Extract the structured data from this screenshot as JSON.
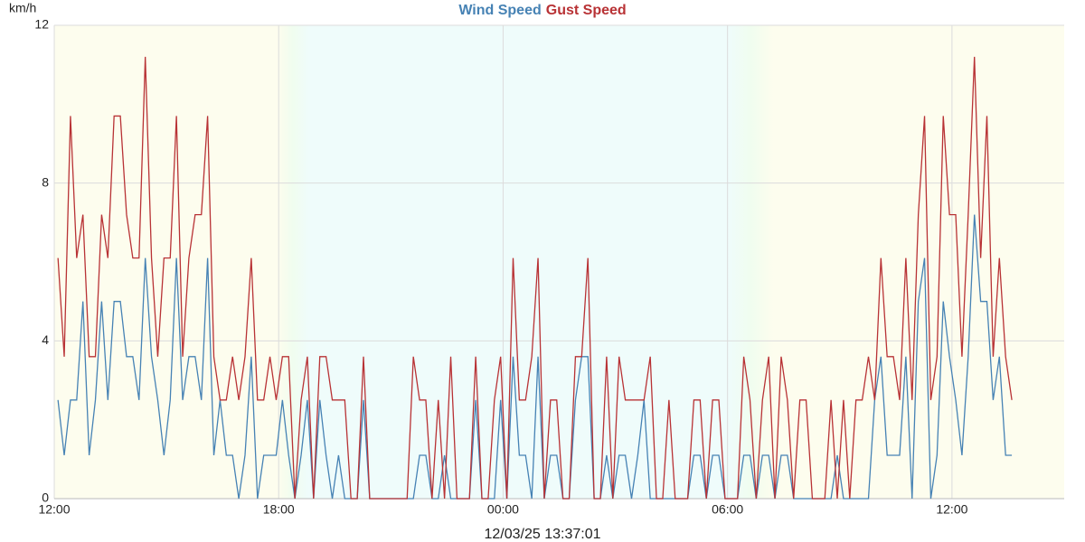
{
  "chart_data": {
    "type": "line",
    "title": "Wind Speed Gust Speed",
    "y_label": "km/h",
    "x_label": "12/03/25 13:37:01",
    "x": [
      6,
      16,
      26,
      36,
      46,
      56,
      66,
      76,
      86,
      96,
      106,
      116,
      126,
      136,
      146,
      156,
      166,
      176,
      186,
      196,
      206,
      216,
      226,
      236,
      246,
      256,
      266,
      276,
      286,
      296,
      306,
      316,
      326,
      336,
      346,
      356,
      366,
      376,
      386,
      396,
      406,
      416,
      426,
      436,
      446,
      456,
      466,
      476,
      486,
      496,
      506,
      516,
      526,
      536,
      546,
      556,
      566,
      576,
      586,
      596,
      606,
      616,
      626,
      636,
      646,
      656,
      666,
      676,
      686,
      696,
      706,
      716,
      726,
      736,
      746,
      756,
      766,
      776,
      786,
      796,
      806,
      816,
      826,
      836,
      846,
      856,
      866,
      876,
      886,
      896,
      906,
      916,
      926,
      936,
      946,
      956,
      966,
      976,
      986,
      996,
      1006,
      1016,
      1026,
      1036,
      1046,
      1056,
      1066,
      1076,
      1086,
      1096,
      1106,
      1116,
      1126,
      1136,
      1146,
      1156,
      1166,
      1176,
      1186,
      1196,
      1206,
      1216,
      1226,
      1236,
      1246,
      1256,
      1266,
      1276,
      1286,
      1296,
      1306,
      1316,
      1326,
      1336,
      1346,
      1356,
      1366,
      1376,
      1386,
      1396,
      1406,
      1416,
      1426,
      1436,
      1446,
      1456,
      1466,
      1476,
      1486,
      1496,
      1506,
      1516,
      1526,
      1536
    ],
    "series": [
      {
        "name": "Wind Speed",
        "color": "#4682b4",
        "values": [
          2.5,
          1.1,
          2.5,
          2.5,
          5.0,
          1.1,
          2.5,
          5.0,
          2.5,
          5.0,
          5.0,
          3.6,
          3.6,
          2.5,
          6.1,
          3.6,
          2.5,
          1.1,
          2.5,
          6.1,
          2.5,
          3.6,
          3.6,
          2.5,
          6.1,
          1.1,
          2.5,
          1.1,
          1.1,
          0,
          1.1,
          3.6,
          0,
          1.1,
          1.1,
          1.1,
          2.5,
          1.1,
          0,
          1.1,
          2.5,
          0,
          2.5,
          1.1,
          0,
          1.1,
          0,
          0,
          0,
          2.5,
          0,
          0,
          0,
          0,
          0,
          0,
          0,
          0,
          1.1,
          1.1,
          0,
          0,
          1.1,
          0,
          0,
          0,
          0,
          2.5,
          0,
          0,
          0,
          2.5,
          0,
          3.6,
          1.1,
          1.1,
          0,
          3.6,
          0,
          1.1,
          1.1,
          0,
          0,
          2.5,
          3.6,
          3.6,
          0,
          0,
          1.1,
          0,
          1.1,
          1.1,
          0,
          1.1,
          2.5,
          0,
          0,
          0,
          0,
          0,
          0,
          0,
          1.1,
          1.1,
          0,
          1.1,
          1.1,
          0,
          0,
          0,
          1.1,
          1.1,
          0,
          1.1,
          1.1,
          0,
          1.1,
          1.1,
          0,
          0,
          0,
          0,
          0,
          0,
          0,
          1.1,
          0,
          0,
          0,
          0,
          0,
          2.5,
          3.6,
          1.1,
          1.1,
          1.1,
          3.6,
          0,
          5.0,
          6.1,
          0,
          1.1,
          5.0,
          3.6,
          2.5,
          1.1,
          3.6,
          7.2,
          5.0,
          5.0,
          2.5,
          3.6,
          1.1,
          1.1
        ]
      },
      {
        "name": "Gust Speed",
        "color": "#b83235",
        "values": [
          6.1,
          3.6,
          9.7,
          6.1,
          7.2,
          3.6,
          3.6,
          7.2,
          6.1,
          9.7,
          9.7,
          7.2,
          6.1,
          6.1,
          11.2,
          6.1,
          3.6,
          6.1,
          6.1,
          9.7,
          3.6,
          6.1,
          7.2,
          7.2,
          9.7,
          3.6,
          2.5,
          2.5,
          3.6,
          2.5,
          3.6,
          6.1,
          2.5,
          2.5,
          3.6,
          2.5,
          3.6,
          3.6,
          0,
          2.5,
          3.6,
          0,
          3.6,
          3.6,
          2.5,
          2.5,
          2.5,
          0,
          0,
          3.6,
          0,
          0,
          0,
          0,
          0,
          0,
          0,
          3.6,
          2.5,
          2.5,
          0,
          2.5,
          0,
          3.6,
          0,
          0,
          0,
          3.6,
          0,
          0,
          2.5,
          3.6,
          0,
          6.1,
          2.5,
          2.5,
          3.6,
          6.1,
          0,
          2.5,
          2.5,
          0,
          0,
          3.6,
          3.6,
          6.1,
          0,
          0,
          3.6,
          0,
          3.6,
          2.5,
          2.5,
          2.5,
          2.5,
          3.6,
          0,
          0,
          2.5,
          0,
          0,
          0,
          2.5,
          2.5,
          0,
          2.5,
          2.5,
          0,
          0,
          0,
          3.6,
          2.5,
          0,
          2.5,
          3.6,
          0,
          3.6,
          2.5,
          0,
          2.5,
          2.5,
          0,
          0,
          0,
          2.5,
          0,
          2.5,
          0,
          2.5,
          2.5,
          3.6,
          2.5,
          6.1,
          3.6,
          3.6,
          2.5,
          6.1,
          2.5,
          7.2,
          9.7,
          2.5,
          3.6,
          9.7,
          7.2,
          7.2,
          3.6,
          7.2,
          11.2,
          6.1,
          9.7,
          3.6,
          6.1,
          3.6,
          2.5
        ]
      }
    ],
    "xlim": [
      0,
      1620
    ],
    "xticks": [
      {
        "value": 0,
        "label": "12:00"
      },
      {
        "value": 360,
        "label": "18:00"
      },
      {
        "value": 720,
        "label": "00:00"
      },
      {
        "value": 1080,
        "label": "06:00"
      },
      {
        "value": 1440,
        "label": "12:00"
      }
    ],
    "ylim": [
      0,
      12
    ],
    "yticks": [
      0,
      4,
      8,
      12
    ],
    "grid": true
  }
}
